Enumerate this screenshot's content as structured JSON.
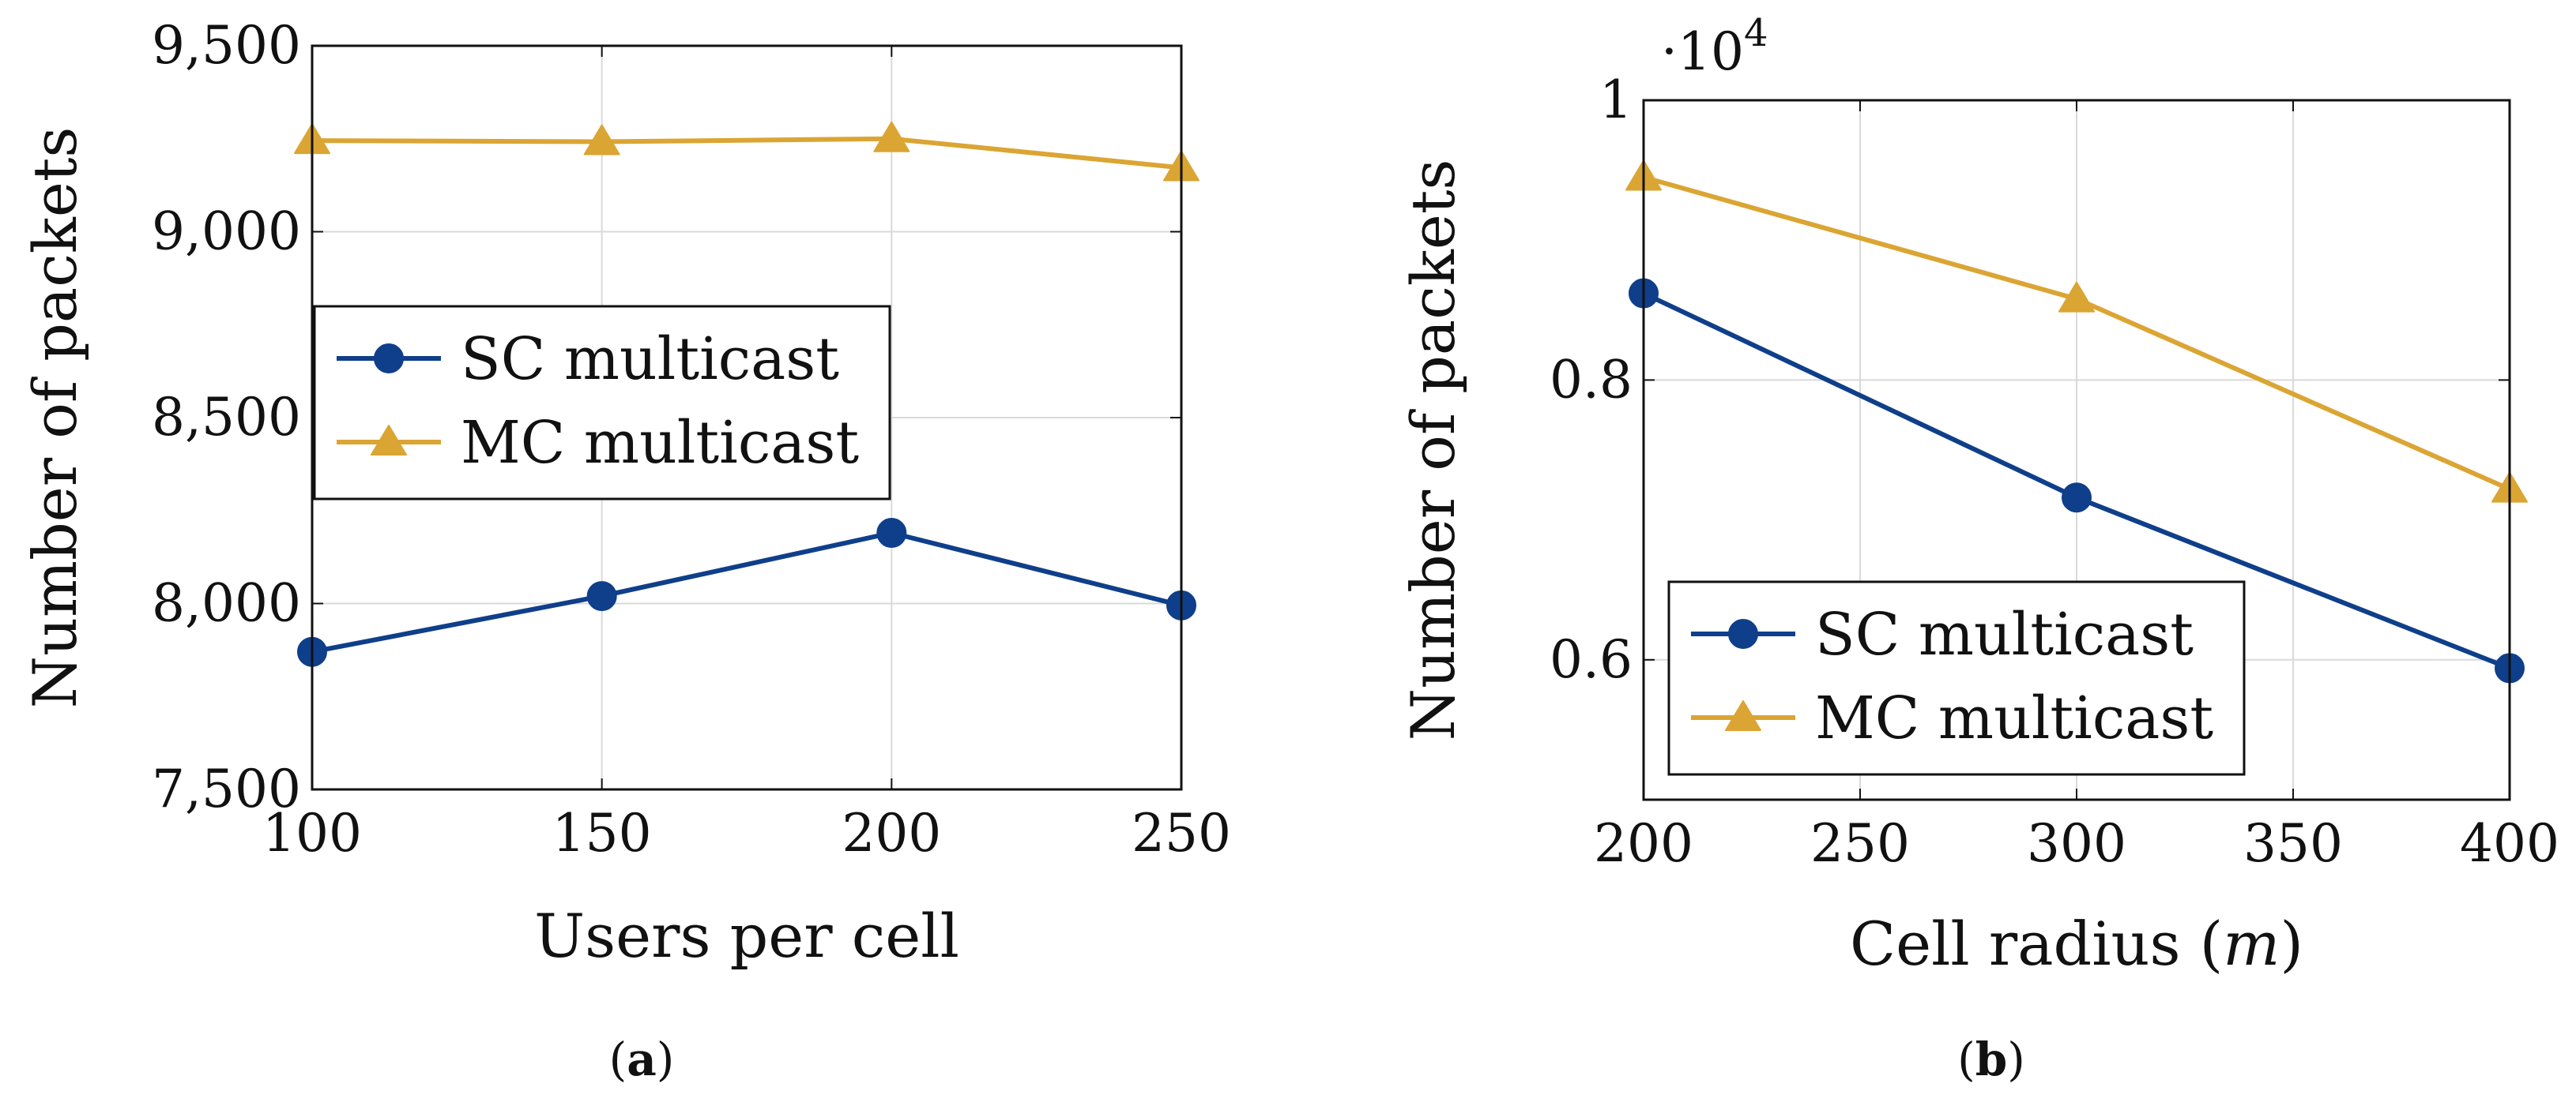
{
  "colors": {
    "sc": "#0f3f8a",
    "mc": "#dba533",
    "grid": "#d9d9d9",
    "axis": "#111111"
  },
  "chart_data": [
    {
      "type": "line",
      "panel": "a",
      "xlabel": "Users per cell",
      "ylabel": "Number of packets",
      "x": [
        100,
        150,
        200,
        250
      ],
      "xlim": [
        100,
        250
      ],
      "ylim": [
        7500,
        9500
      ],
      "xticks": [
        "100",
        "150",
        "200",
        "250"
      ],
      "yticks": [
        "7,500",
        "8,000",
        "8,500",
        "9,000",
        "9,500"
      ],
      "grid": true,
      "legend_position": "center-left",
      "series": [
        {
          "name": "SC multicast",
          "values": [
            7870,
            8020,
            8190,
            7995
          ],
          "marker": "circle",
          "color_key": "sc"
        },
        {
          "name": "MC multicast",
          "values": [
            9245,
            9242,
            9250,
            9172
          ],
          "marker": "triangle",
          "color_key": "mc"
        }
      ],
      "caption_open": "(",
      "caption_label": "a",
      "caption_close": ")"
    },
    {
      "type": "line",
      "panel": "b",
      "xlabel_main": "Cell radius (",
      "xlabel_var": "m",
      "xlabel_close": ")",
      "ylabel": "Number of packets",
      "multiplier_base": "·10",
      "multiplier_exp": "4",
      "x": [
        200,
        300,
        400
      ],
      "xlim": [
        200,
        400
      ],
      "ylim": [
        0.5,
        1.0
      ],
      "xticks": [
        "200",
        "250",
        "300",
        "350",
        "400"
      ],
      "ytick_values": [
        0.6,
        0.8,
        1.0
      ],
      "yticks": [
        "0.6",
        "0.8",
        "1"
      ],
      "grid": true,
      "legend_position": "bottom-left",
      "series": [
        {
          "name": "SC multicast",
          "values": [
            0.862,
            0.716,
            0.594
          ],
          "marker": "circle",
          "color_key": "sc"
        },
        {
          "name": "MC multicast",
          "values": [
            0.945,
            0.858,
            0.722
          ],
          "marker": "triangle",
          "color_key": "mc"
        }
      ],
      "caption_open": "(",
      "caption_label": "b",
      "caption_close": ")"
    }
  ]
}
